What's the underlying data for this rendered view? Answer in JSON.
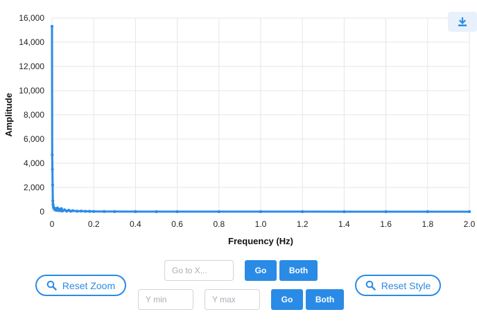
{
  "chart_data": {
    "type": "line",
    "title": "",
    "xlabel": "Frequency (Hz)",
    "ylabel": "Amplitude",
    "xlim": [
      0,
      2.0
    ],
    "ylim": [
      0,
      16000
    ],
    "x_ticks": [
      0,
      0.2,
      0.4,
      0.6,
      0.8,
      1.0,
      1.2,
      1.4,
      1.6,
      1.8,
      2.0
    ],
    "x_tick_labels": [
      "0",
      "0.2",
      "0.4",
      "0.6",
      "0.8",
      "1.0",
      "1.2",
      "1.4",
      "1.6",
      "1.8",
      "2.0"
    ],
    "y_ticks": [
      0,
      2000,
      4000,
      6000,
      8000,
      10000,
      12000,
      14000,
      16000
    ],
    "y_tick_labels": [
      "0",
      "2,000",
      "4,000",
      "6,000",
      "8,000",
      "10,000",
      "12,000",
      "14,000",
      "16,000"
    ],
    "grid": true,
    "color": "#2a8be6",
    "series": [
      {
        "x": [
          0,
          0.001,
          0.002,
          0.003,
          0.004,
          0.005,
          0.007,
          0.009,
          0.012,
          0.015,
          0.018,
          0.022,
          0.026,
          0.03,
          0.035,
          0.04,
          0.045,
          0.05,
          0.06,
          0.07,
          0.08,
          0.09,
          0.1,
          0.12,
          0.14,
          0.16,
          0.18,
          0.2,
          0.25,
          0.3,
          0.4,
          0.5,
          0.6,
          0.8,
          1.0,
          1.2,
          1.4,
          1.6,
          1.8,
          2.0
        ],
        "y": [
          15300,
          4700,
          3500,
          2200,
          900,
          600,
          400,
          300,
          200,
          150,
          250,
          120,
          300,
          100,
          200,
          80,
          250,
          60,
          150,
          50,
          120,
          40,
          80,
          40,
          50,
          30,
          30,
          20,
          15,
          10,
          8,
          6,
          5,
          4,
          3,
          3,
          2,
          2,
          2,
          2
        ]
      }
    ]
  },
  "controls": {
    "reset_zoom_label": "Reset Zoom",
    "reset_style_label": "Reset Style",
    "goto_x_placeholder": "Go to X...",
    "go_label": "Go",
    "both_label": "Both",
    "y_min_placeholder": "Y min",
    "y_max_placeholder": "Y max"
  },
  "icons": {
    "download": "download-icon",
    "search": "search-icon"
  }
}
